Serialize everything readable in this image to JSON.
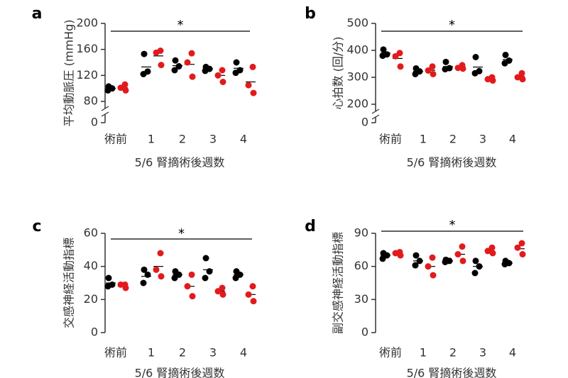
{
  "colors": {
    "control": "#000000",
    "treated": "#e31a1c",
    "axis": "#333333"
  },
  "chart_data": [
    {
      "type": "scatter",
      "panel": "a",
      "ylabel": "平均動脈圧 (mmHg)",
      "xlabel": "5/6 腎摘術後週数",
      "categories": [
        "術前",
        "1",
        "2",
        "3",
        "4"
      ],
      "ylim": [
        80,
        200
      ],
      "yticks": [
        80,
        120,
        160,
        200
      ],
      "axis_zero": "0",
      "axis_break": true,
      "significance": "*",
      "series": [
        {
          "values": [
            [
              97,
              100,
              103
            ],
            [
              122,
              126,
              153
            ],
            [
              128,
              134,
              143
            ],
            [
              127,
              130,
              133
            ],
            [
              124,
              128,
              140
            ]
          ],
          "means": [
            100,
            133,
            135,
            130,
            131
          ]
        },
        {
          "values": [
            [
              97,
              101,
              106
            ],
            [
              136,
              155,
              158
            ],
            [
              118,
              140,
              154
            ],
            [
              110,
              120,
              128
            ],
            [
              93,
              105,
              133
            ]
          ],
          "means": [
            101,
            150,
            137,
            120,
            110
          ]
        }
      ]
    },
    {
      "type": "scatter",
      "panel": "b",
      "ylabel": "心拍数 (回/分)",
      "xlabel": "5/6 腎摘術後週数",
      "categories": [
        "術前",
        "1",
        "2",
        "3",
        "4"
      ],
      "ylim": [
        200,
        500
      ],
      "yticks": [
        200,
        300,
        400,
        500
      ],
      "axis_zero": "0",
      "axis_break": true,
      "significance": "*",
      "series": [
        {
          "values": [
            [
              380,
              385,
              403
            ],
            [
              312,
              322,
              333
            ],
            [
              330,
              334,
              357
            ],
            [
              315,
              323,
              375
            ],
            [
              352,
              362,
              383
            ]
          ],
          "means": [
            390,
            322,
            340,
            338,
            366
          ]
        },
        {
          "values": [
            [
              340,
              378,
              390
            ],
            [
              312,
              325,
              340
            ],
            [
              332,
              335,
              345
            ],
            [
              288,
              293,
              300
            ],
            [
              293,
              300,
              315
            ]
          ],
          "means": [
            370,
            326,
            337,
            294,
            303
          ]
        }
      ]
    },
    {
      "type": "scatter",
      "panel": "c",
      "ylabel": "交感神経活動指標",
      "xlabel": "5/6 腎摘術後週数",
      "categories": [
        "術前",
        "1",
        "2",
        "3",
        "4"
      ],
      "ylim": [
        0,
        60
      ],
      "yticks": [
        0,
        20,
        40,
        60
      ],
      "significance": "*",
      "series": [
        {
          "values": [
            [
              28,
              29,
              33
            ],
            [
              30,
              35,
              38
            ],
            [
              33,
              35,
              37
            ],
            [
              33,
              37,
              45
            ],
            [
              33,
              35,
              37
            ]
          ],
          "means": [
            30,
            34,
            35,
            38,
            35
          ]
        },
        {
          "values": [
            [
              27,
              29,
              29
            ],
            [
              34,
              38,
              48
            ],
            [
              22,
              28,
              35
            ],
            [
              23,
              25,
              27
            ],
            [
              19,
              23,
              28
            ]
          ],
          "means": [
            28,
            40,
            28,
            25,
            23
          ]
        }
      ]
    },
    {
      "type": "scatter",
      "panel": "d",
      "ylabel": "副交感神経活動指標",
      "xlabel": "5/6 腎摘術後週数",
      "categories": [
        "術前",
        "1",
        "2",
        "3",
        "4"
      ],
      "ylim": [
        0,
        90
      ],
      "yticks": [
        0,
        30,
        60,
        90
      ],
      "significance": "*",
      "series": [
        {
          "values": [
            [
              67,
              70,
              72
            ],
            [
              61,
              65,
              70
            ],
            [
              64,
              65,
              66
            ],
            [
              54,
              60,
              65
            ],
            [
              62,
              63,
              65
            ]
          ],
          "means": [
            70,
            65,
            65,
            60,
            63
          ]
        },
        {
          "values": [
            [
              70,
              72,
              73
            ],
            [
              52,
              60,
              68
            ],
            [
              65,
              71,
              78
            ],
            [
              72,
              74,
              77
            ],
            [
              71,
              77,
              81
            ]
          ],
          "means": [
            72,
            60,
            71,
            74,
            76
          ]
        }
      ]
    }
  ]
}
